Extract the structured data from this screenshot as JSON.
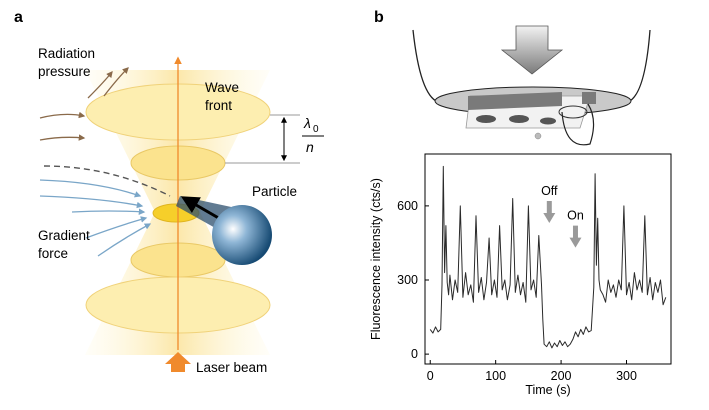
{
  "panels": {
    "a": {
      "letter": "a",
      "labels": {
        "radiation_pressure_1": "Radiation",
        "radiation_pressure_2": "pressure",
        "wave_front_1": "Wave",
        "wave_front_2": "front",
        "lambda": "λ",
        "lambda_sub": "0",
        "refractive_index": "n",
        "particle": "Particle",
        "gradient_force_1": "Gradient",
        "gradient_force_2": "force",
        "laser_beam": "Laser beam"
      },
      "colors": {
        "beam_fill": "#fbe9a6",
        "beam_edge": "#f2d27a",
        "axis_arrow": "#f08a2c",
        "radiation_arrow": "#8a6a4a",
        "gradient_arrow": "#7aa6c8",
        "particle": "#1f5a86"
      }
    },
    "b": {
      "letter": "b",
      "chart_data": {
        "type": "line",
        "xlabel": "Time (s)",
        "ylabel": "Fluorescence intensity (cts/s)",
        "xlim": [
          -8,
          368
        ],
        "ylim": [
          -40,
          810
        ],
        "xticks": [
          0,
          100,
          200,
          300
        ],
        "yticks": [
          0,
          300,
          600
        ],
        "annotations": [
          {
            "text": "Off",
            "x": 182,
            "y": 620
          },
          {
            "text": "On",
            "x": 222,
            "y": 520
          }
        ],
        "series": [
          {
            "color": "#2a2a2a",
            "x": [
              0,
              4,
              8,
              12,
              16,
              18,
              20,
              22,
              24,
              26,
              28,
              30,
              34,
              38,
              42,
              46,
              50,
              54,
              58,
              62,
              66,
              70,
              74,
              78,
              82,
              86,
              90,
              94,
              98,
              102,
              106,
              110,
              114,
              118,
              122,
              126,
              130,
              134,
              138,
              142,
              146,
              150,
              154,
              158,
              162,
              166,
              170,
              172,
              174,
              178,
              182,
              186,
              190,
              194,
              198,
              202,
              206,
              210,
              214,
              218,
              222,
              226,
              230,
              234,
              238,
              242,
              246,
              250,
              252,
              254,
              256,
              258,
              260,
              264,
              268,
              272,
              276,
              280,
              284,
              288,
              292,
              296,
              300,
              304,
              308,
              312,
              316,
              320,
              324,
              328,
              332,
              336,
              340,
              344,
              348,
              352,
              356,
              360
            ],
            "y": [
              100,
              85,
              110,
              90,
              100,
              280,
              760,
              330,
              520,
              290,
              240,
              320,
              220,
              300,
              250,
              600,
              230,
              330,
              240,
              280,
              210,
              560,
              250,
              310,
              220,
              290,
              470,
              240,
              300,
              230,
              520,
              260,
              300,
              220,
              280,
              630,
              250,
              320,
              240,
              290,
              210,
              600,
              260,
              300,
              230,
              480,
              280,
              140,
              40,
              30,
              50,
              25,
              45,
              30,
              55,
              35,
              50,
              30,
              40,
              60,
              90,
              70,
              100,
              80,
              110,
              90,
              95,
              270,
              730,
              360,
              550,
              300,
              260,
              240,
              210,
              300,
              250,
              280,
              230,
              300,
              260,
              600,
              240,
              290,
              220,
              330,
              260,
              300,
              250,
              560,
              240,
              310,
              220,
              290,
              250,
              300,
              200,
              230
            ]
          }
        ]
      }
    }
  }
}
